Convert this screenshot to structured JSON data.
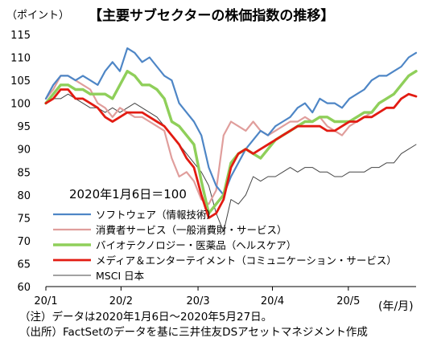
{
  "unit_label": "（ポイント）",
  "title": "【主要サブセクターの株価指数の推移】",
  "x_unit_label": "(年/月)",
  "notes": [
    "（注）データは2020年1月6日～2020年5月27日。",
    "（出所）FactSetのデータを基に三井住友DSアセットマネジメント作成"
  ],
  "chart_data": {
    "type": "line",
    "annotation": "2020年1月6日＝100",
    "ylim": [
      60,
      115
    ],
    "yticks": [
      60,
      65,
      70,
      75,
      80,
      85,
      90,
      95,
      100,
      105,
      110,
      115
    ],
    "xlim": [
      0,
      100
    ],
    "xtick_labels": [
      "20/1",
      "20/2",
      "20/3",
      "20/4",
      "20/5"
    ],
    "xtick_positions": [
      0,
      20.3,
      41.1,
      61.2,
      81.7
    ],
    "series": [
      {
        "name": "ソフトウェア（情報技術）",
        "color": "#4e86c6",
        "x": [
          0,
          2,
          4,
          6,
          8,
          10,
          12,
          14,
          16,
          18,
          20,
          22,
          24,
          26,
          28,
          30,
          32,
          34,
          36,
          38,
          40,
          42,
          44,
          46,
          48,
          50,
          52,
          54,
          56,
          58,
          60,
          62,
          64,
          66,
          68,
          70,
          72,
          74,
          76,
          78,
          80,
          82,
          84,
          86,
          88,
          90,
          92,
          94,
          96,
          98,
          100
        ],
        "y": [
          101,
          104,
          106,
          106,
          105,
          106,
          105,
          104,
          107,
          109,
          107,
          112,
          111,
          109,
          110,
          108,
          106,
          105,
          100,
          98,
          96,
          93,
          86,
          82,
          80,
          84,
          87,
          90,
          92,
          94,
          93,
          95,
          96,
          97,
          99,
          100,
          98,
          101,
          100,
          100,
          99,
          101,
          102,
          103,
          105,
          106,
          106,
          107,
          108,
          110,
          111
        ]
      },
      {
        "name": "消費者サービス（一般消費財・サービス）",
        "color": "#e09e9c",
        "x": [
          0,
          2,
          4,
          6,
          8,
          10,
          12,
          14,
          16,
          18,
          20,
          22,
          24,
          26,
          28,
          30,
          32,
          34,
          36,
          38,
          40,
          42,
          44,
          46,
          48,
          50,
          52,
          54,
          56,
          58,
          60,
          62,
          64,
          66,
          68,
          70,
          72,
          74,
          76,
          78,
          80,
          82,
          84,
          86,
          88,
          90,
          92,
          94,
          96,
          98,
          100
        ],
        "y": [
          101,
          103,
          106,
          106,
          105,
          104,
          103,
          100,
          99,
          97,
          99,
          98,
          97,
          97,
          96,
          95,
          94,
          88,
          84,
          85,
          83,
          79,
          78,
          81,
          93,
          96,
          95,
          94,
          96,
          94,
          93,
          94,
          95,
          96,
          96,
          97,
          96,
          97,
          95,
          94,
          93,
          95,
          96,
          97,
          98,
          100,
          101,
          102,
          104,
          106,
          107
        ]
      },
      {
        "name": "バイオテクノロジー・医薬品（ヘルスケア）",
        "color": "#8fcf5a",
        "x": [
          0,
          2,
          4,
          6,
          8,
          10,
          12,
          14,
          16,
          18,
          20,
          22,
          24,
          26,
          28,
          30,
          32,
          34,
          36,
          38,
          40,
          42,
          44,
          46,
          48,
          50,
          52,
          54,
          56,
          58,
          60,
          62,
          64,
          66,
          68,
          70,
          72,
          74,
          76,
          78,
          80,
          82,
          84,
          86,
          88,
          90,
          92,
          94,
          96,
          98,
          100
        ],
        "y": [
          100,
          102,
          104,
          104,
          103,
          103,
          102,
          102,
          102,
          101,
          104,
          107,
          106,
          104,
          104,
          103,
          101,
          96,
          95,
          93,
          91,
          83,
          76,
          78,
          80,
          87,
          89,
          90,
          89,
          88,
          90,
          92,
          93,
          94,
          95,
          96,
          96,
          97,
          97,
          96,
          96,
          96,
          97,
          98,
          98,
          100,
          101,
          102,
          104,
          106,
          107
        ]
      },
      {
        "name": "メディア＆エンターテイメント（コミュニケーション・サービス）",
        "color": "#e21b12",
        "x": [
          0,
          2,
          4,
          6,
          8,
          10,
          12,
          14,
          16,
          18,
          20,
          22,
          24,
          26,
          28,
          30,
          32,
          34,
          36,
          38,
          40,
          42,
          44,
          46,
          48,
          50,
          52,
          54,
          56,
          58,
          60,
          62,
          64,
          66,
          68,
          70,
          72,
          74,
          76,
          78,
          80,
          82,
          84,
          86,
          88,
          90,
          92,
          94,
          96,
          98,
          100
        ],
        "y": [
          100,
          101,
          103,
          103,
          101,
          101,
          100,
          99,
          97,
          96,
          97,
          98,
          98,
          98,
          97,
          96,
          95,
          93,
          91,
          88,
          86,
          80,
          75,
          76,
          79,
          86,
          89,
          90,
          89,
          90,
          91,
          92,
          93,
          94,
          95,
          95,
          95,
          95,
          94,
          94,
          95,
          96,
          96,
          97,
          97,
          98,
          99,
          99,
          101,
          102,
          101.5
        ]
      },
      {
        "name": "MSCI 日本",
        "color": "#444444",
        "x": [
          0,
          2,
          4,
          6,
          8,
          10,
          12,
          14,
          16,
          18,
          20,
          22,
          24,
          26,
          28,
          30,
          32,
          34,
          36,
          38,
          40,
          42,
          44,
          46,
          48,
          50,
          52,
          54,
          56,
          58,
          60,
          62,
          64,
          66,
          68,
          70,
          72,
          74,
          76,
          78,
          80,
          82,
          84,
          86,
          88,
          90,
          92,
          94,
          96,
          98,
          100
        ],
        "y": [
          100,
          101,
          101,
          102,
          101,
          100,
          99,
          99,
          98,
          99,
          98,
          99,
          100,
          99,
          98,
          97,
          95,
          93,
          91,
          89,
          87,
          85,
          82,
          76,
          72,
          79,
          78,
          80,
          84,
          83,
          84,
          84,
          85,
          86,
          85,
          86,
          86,
          85,
          85,
          84,
          84,
          85,
          85,
          85,
          86,
          86,
          87,
          87,
          89,
          90,
          91
        ]
      }
    ]
  }
}
